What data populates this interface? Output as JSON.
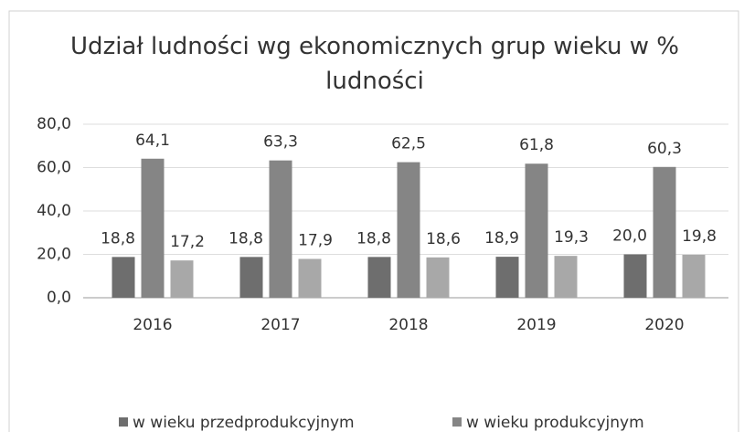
{
  "chart_data": {
    "type": "bar",
    "title": "Udział ludności wg ekonomicznych grup wieku w % ludności",
    "categories": [
      "2016",
      "2017",
      "2018",
      "2019",
      "2020"
    ],
    "series": [
      {
        "name": "w wieku przedprodukcyjnym",
        "color": "#6e6e6e",
        "values": [
          18.8,
          18.8,
          18.8,
          18.9,
          20.0
        ],
        "value_labels": [
          "18,8",
          "18,8",
          "18,8",
          "18,9",
          "20,0"
        ]
      },
      {
        "name": "w wieku produkcyjnym",
        "color": "#858585",
        "values": [
          64.1,
          63.3,
          62.5,
          61.8,
          60.3
        ],
        "value_labels": [
          "64,1",
          "63,3",
          "62,5",
          "61,8",
          "60,3"
        ]
      },
      {
        "color": "#a8a8a8",
        "values": [
          17.2,
          17.9,
          18.6,
          19.3,
          19.8
        ],
        "value_labels": [
          "17,2",
          "17,9",
          "18,6",
          "19,3",
          "19,8"
        ]
      }
    ],
    "ylim": [
      0,
      80
    ],
    "yticks": [
      {
        "value": 0,
        "label": "0,0"
      },
      {
        "value": 20,
        "label": "20,0"
      },
      {
        "value": 40,
        "label": "40,0"
      },
      {
        "value": 60,
        "label": "60,0"
      },
      {
        "value": 80,
        "label": "80,0"
      }
    ],
    "grid": true,
    "legend": "bottom"
  }
}
